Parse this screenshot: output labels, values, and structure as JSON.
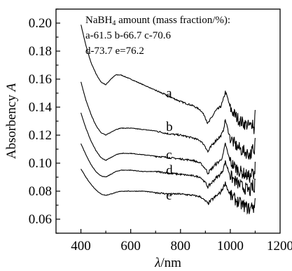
{
  "chart_data": {
    "type": "line",
    "xlabel_symbol": "λ",
    "xlabel_unit": "/nm",
    "ylabel_text": "Absorbency ",
    "ylabel_symbol": "A",
    "xlim": [
      300,
      1200
    ],
    "ylim": [
      0.05,
      0.21
    ],
    "xticks": [
      400,
      600,
      800,
      1000,
      1200
    ],
    "yticks": [
      0.06,
      0.08,
      0.1,
      0.12,
      0.14,
      0.16,
      0.18,
      0.2
    ],
    "legend": {
      "title_prefix": "NaBH",
      "title_sub": "4",
      "title_suffix": " amount (mass fraction/%):",
      "line1": "a-61.5 b-66.7 c-70.6",
      "line2": "d-73.7 e=76.2",
      "placement": "top-right"
    },
    "series": [
      {
        "name": "a",
        "label_pos": [
          742,
          0.147
        ],
        "points": [
          [
            400,
            0.199
          ],
          [
            420,
            0.184
          ],
          [
            440,
            0.172
          ],
          [
            460,
            0.164
          ],
          [
            480,
            0.158
          ],
          [
            500,
            0.156
          ],
          [
            520,
            0.16
          ],
          [
            540,
            0.163
          ],
          [
            560,
            0.163
          ],
          [
            600,
            0.16
          ],
          [
            650,
            0.156
          ],
          [
            700,
            0.152
          ],
          [
            750,
            0.148
          ],
          [
            800,
            0.144
          ],
          [
            850,
            0.141
          ],
          [
            880,
            0.138
          ],
          [
            900,
            0.133
          ],
          [
            910,
            0.128
          ],
          [
            920,
            0.131
          ],
          [
            940,
            0.137
          ],
          [
            960,
            0.14
          ],
          [
            970,
            0.144
          ],
          [
            980,
            0.151
          ],
          [
            990,
            0.146
          ],
          [
            1000,
            0.139
          ],
          [
            1020,
            0.134
          ],
          [
            1040,
            0.13
          ],
          [
            1060,
            0.128
          ],
          [
            1080,
            0.126
          ],
          [
            1090,
            0.13
          ],
          [
            1095,
            0.123
          ],
          [
            1100,
            0.138
          ]
        ]
      },
      {
        "name": "b",
        "label_pos": [
          742,
          0.123
        ],
        "points": [
          [
            400,
            0.158
          ],
          [
            420,
            0.145
          ],
          [
            440,
            0.135
          ],
          [
            460,
            0.127
          ],
          [
            480,
            0.122
          ],
          [
            500,
            0.12
          ],
          [
            520,
            0.122
          ],
          [
            540,
            0.124
          ],
          [
            560,
            0.125
          ],
          [
            600,
            0.125
          ],
          [
            650,
            0.124
          ],
          [
            700,
            0.123
          ],
          [
            750,
            0.121
          ],
          [
            800,
            0.12
          ],
          [
            850,
            0.118
          ],
          [
            880,
            0.116
          ],
          [
            900,
            0.112
          ],
          [
            910,
            0.108
          ],
          [
            920,
            0.111
          ],
          [
            940,
            0.116
          ],
          [
            960,
            0.119
          ],
          [
            970,
            0.122
          ],
          [
            980,
            0.131
          ],
          [
            990,
            0.124
          ],
          [
            1000,
            0.118
          ],
          [
            1020,
            0.113
          ],
          [
            1040,
            0.11
          ],
          [
            1060,
            0.108
          ],
          [
            1080,
            0.106
          ],
          [
            1090,
            0.11
          ],
          [
            1095,
            0.104
          ],
          [
            1100,
            0.118
          ]
        ]
      },
      {
        "name": "c",
        "label_pos": [
          742,
          0.103
        ],
        "points": [
          [
            400,
            0.136
          ],
          [
            420,
            0.125
          ],
          [
            440,
            0.116
          ],
          [
            460,
            0.109
          ],
          [
            480,
            0.104
          ],
          [
            500,
            0.102
          ],
          [
            520,
            0.104
          ],
          [
            540,
            0.106
          ],
          [
            560,
            0.107
          ],
          [
            600,
            0.107
          ],
          [
            650,
            0.106
          ],
          [
            700,
            0.105
          ],
          [
            750,
            0.104
          ],
          [
            800,
            0.103
          ],
          [
            850,
            0.102
          ],
          [
            880,
            0.1
          ],
          [
            900,
            0.096
          ],
          [
            910,
            0.093
          ],
          [
            920,
            0.095
          ],
          [
            940,
            0.099
          ],
          [
            960,
            0.102
          ],
          [
            970,
            0.105
          ],
          [
            980,
            0.114
          ],
          [
            990,
            0.107
          ],
          [
            1000,
            0.101
          ],
          [
            1020,
            0.097
          ],
          [
            1040,
            0.094
          ],
          [
            1060,
            0.092
          ],
          [
            1080,
            0.09
          ],
          [
            1090,
            0.094
          ],
          [
            1095,
            0.088
          ],
          [
            1100,
            0.101
          ]
        ]
      },
      {
        "name": "d",
        "label_pos": [
          742,
          0.092
        ],
        "points": [
          [
            400,
            0.114
          ],
          [
            420,
            0.106
          ],
          [
            440,
            0.099
          ],
          [
            460,
            0.094
          ],
          [
            480,
            0.091
          ],
          [
            500,
            0.09
          ],
          [
            520,
            0.092
          ],
          [
            540,
            0.094
          ],
          [
            560,
            0.095
          ],
          [
            600,
            0.095
          ],
          [
            650,
            0.094
          ],
          [
            700,
            0.094
          ],
          [
            750,
            0.093
          ],
          [
            800,
            0.092
          ],
          [
            850,
            0.091
          ],
          [
            880,
            0.09
          ],
          [
            900,
            0.086
          ],
          [
            910,
            0.083
          ],
          [
            920,
            0.085
          ],
          [
            940,
            0.089
          ],
          [
            960,
            0.092
          ],
          [
            970,
            0.095
          ],
          [
            980,
            0.101
          ],
          [
            990,
            0.096
          ],
          [
            1000,
            0.091
          ],
          [
            1020,
            0.087
          ],
          [
            1040,
            0.084
          ],
          [
            1060,
            0.082
          ],
          [
            1080,
            0.08
          ],
          [
            1090,
            0.084
          ],
          [
            1095,
            0.078
          ],
          [
            1100,
            0.088
          ]
        ]
      },
      {
        "name": "e",
        "label_pos": [
          742,
          0.074
        ],
        "points": [
          [
            400,
            0.096
          ],
          [
            420,
            0.09
          ],
          [
            440,
            0.085
          ],
          [
            460,
            0.081
          ],
          [
            480,
            0.078
          ],
          [
            500,
            0.077
          ],
          [
            520,
            0.078
          ],
          [
            540,
            0.079
          ],
          [
            560,
            0.08
          ],
          [
            600,
            0.08
          ],
          [
            650,
            0.08
          ],
          [
            700,
            0.079
          ],
          [
            750,
            0.078
          ],
          [
            800,
            0.078
          ],
          [
            850,
            0.077
          ],
          [
            880,
            0.076
          ],
          [
            900,
            0.073
          ],
          [
            910,
            0.071
          ],
          [
            920,
            0.073
          ],
          [
            940,
            0.076
          ],
          [
            960,
            0.079
          ],
          [
            970,
            0.082
          ],
          [
            980,
            0.086
          ],
          [
            990,
            0.081
          ],
          [
            1000,
            0.077
          ],
          [
            1020,
            0.074
          ],
          [
            1040,
            0.071
          ],
          [
            1060,
            0.069
          ],
          [
            1080,
            0.067
          ],
          [
            1090,
            0.071
          ],
          [
            1095,
            0.066
          ],
          [
            1100,
            0.075
          ]
        ]
      }
    ]
  }
}
